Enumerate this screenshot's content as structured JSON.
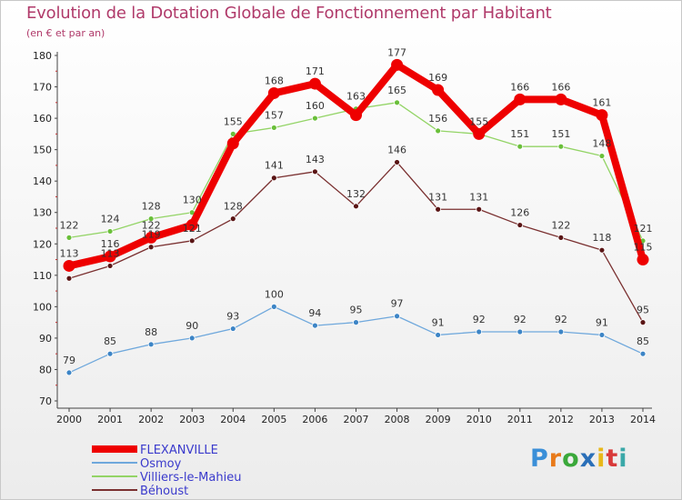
{
  "title": "Evolution de la Dotation Globale de Fonctionnement par Habitant",
  "subtitle": "(en € et par an)",
  "logo": {
    "text": "Proxiti",
    "letter_colors": [
      "#3a8fd8",
      "#e87a1a",
      "#3aa83a",
      "#2a6fb8",
      "#e8b81a",
      "#d83a3a",
      "#3aa8a8"
    ]
  },
  "chart_data": {
    "type": "line",
    "title": "Evolution de la Dotation Globale de Fonctionnement par Habitant",
    "subtitle": "(en € et par an)",
    "xlabel": "",
    "ylabel": "",
    "ylim": [
      70,
      180
    ],
    "yticks": [
      70,
      80,
      90,
      100,
      110,
      120,
      130,
      140,
      150,
      160,
      170,
      180
    ],
    "categories": [
      "2000",
      "2001",
      "2002",
      "2003",
      "2004",
      "2005",
      "2006",
      "2007",
      "2008",
      "2009",
      "2010",
      "2011",
      "2012",
      "2013",
      "2014"
    ],
    "legend_position": "bottom-left",
    "grid": false,
    "series": [
      {
        "name": "FLEXANVILLE",
        "color": "#ee0000",
        "marker": "#ee0000",
        "emphasis": true,
        "values": [
          113,
          116,
          122,
          126,
          152,
          168,
          171,
          161,
          177,
          169,
          155,
          166,
          166,
          161,
          115
        ],
        "labels": [
          "113",
          "116",
          "122",
          "",
          "",
          "168",
          "171",
          "",
          "177",
          "169",
          "",
          "166",
          "166",
          "161",
          "115"
        ]
      },
      {
        "name": "Osmoy",
        "color": "#6fa8dc",
        "marker": "#3d85c6",
        "emphasis": false,
        "values": [
          79,
          85,
          88,
          90,
          93,
          100,
          94,
          95,
          97,
          91,
          92,
          92,
          92,
          91,
          85
        ],
        "labels": [
          "79",
          "85",
          "88",
          "90",
          "93",
          "100",
          "94",
          "95",
          "97",
          "91",
          "92",
          "92",
          "92",
          "91",
          "85"
        ]
      },
      {
        "name": "Villiers-le-Mahieu",
        "color": "#93d466",
        "marker": "#6abf3a",
        "emphasis": false,
        "values": [
          122,
          124,
          128,
          130,
          155,
          157,
          160,
          163,
          165,
          156,
          155,
          151,
          151,
          148,
          121
        ],
        "labels": [
          "122",
          "124",
          "128",
          "130",
          "155",
          "157",
          "160",
          "163",
          "165",
          "156",
          "155",
          "151",
          "151",
          "148",
          "121"
        ]
      },
      {
        "name": "Béhoust",
        "color": "#7a3030",
        "marker": "#5a1515",
        "emphasis": false,
        "values": [
          109,
          113,
          119,
          121,
          128,
          141,
          143,
          132,
          146,
          131,
          131,
          126,
          122,
          118,
          95
        ],
        "labels": [
          "",
          "113",
          "119",
          "121",
          "128",
          "141",
          "143",
          "132",
          "146",
          "131",
          "131",
          "126",
          "122",
          "118",
          "95"
        ]
      }
    ]
  }
}
